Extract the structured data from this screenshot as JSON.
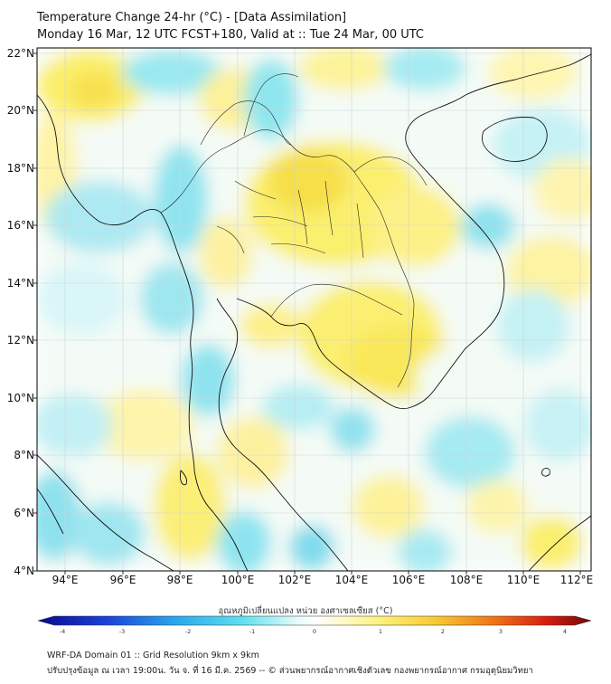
{
  "title": {
    "line1": "Temperature Change 24-hr (°C) - [Data Assimilation]",
    "line2": "Monday 16 Mar, 12 UTC FCST+180, Valid at :: Tue 24 Mar, 00 UTC"
  },
  "map": {
    "lon_labels": [
      "94°E",
      "96°E",
      "98°E",
      "100°E",
      "102°E",
      "104°E",
      "106°E",
      "108°E",
      "110°E",
      "112°E"
    ],
    "lat_labels": [
      "22°N",
      "20°N",
      "18°N",
      "16°N",
      "14°N",
      "12°N",
      "10°N",
      "8°N",
      "6°N",
      "4°N"
    ],
    "grid": true,
    "field_colors": {
      "warm": "#fbf06a",
      "warm_light": "#fdf8b8",
      "cool": "#8ee6f0",
      "cool_light": "#d6f6f8",
      "coast": "#111111"
    }
  },
  "colorbar": {
    "label": "อุณหภูมิเปลี่ยนแปลง หน่วย องศาเซลเซียส (°C)",
    "ticks": [
      "-4",
      "-3",
      "-2",
      "-1",
      "0",
      "1",
      "2",
      "3",
      "4"
    ],
    "range": [
      -4,
      4
    ]
  },
  "footer": {
    "line1": "WRF-DA Domain 01 :: Grid Resolution 9km x 9km",
    "line2": "ปรับปรุงข้อมูล ณ เวลา 19:00น. วัน จ. ที่ 16 มี.ค. 2569 -- © ส่วนพยากรณ์อากาศเชิงตัวเลข กองพยากรณ์อากาศ กรมอุตุนิยมวิทยา"
  }
}
